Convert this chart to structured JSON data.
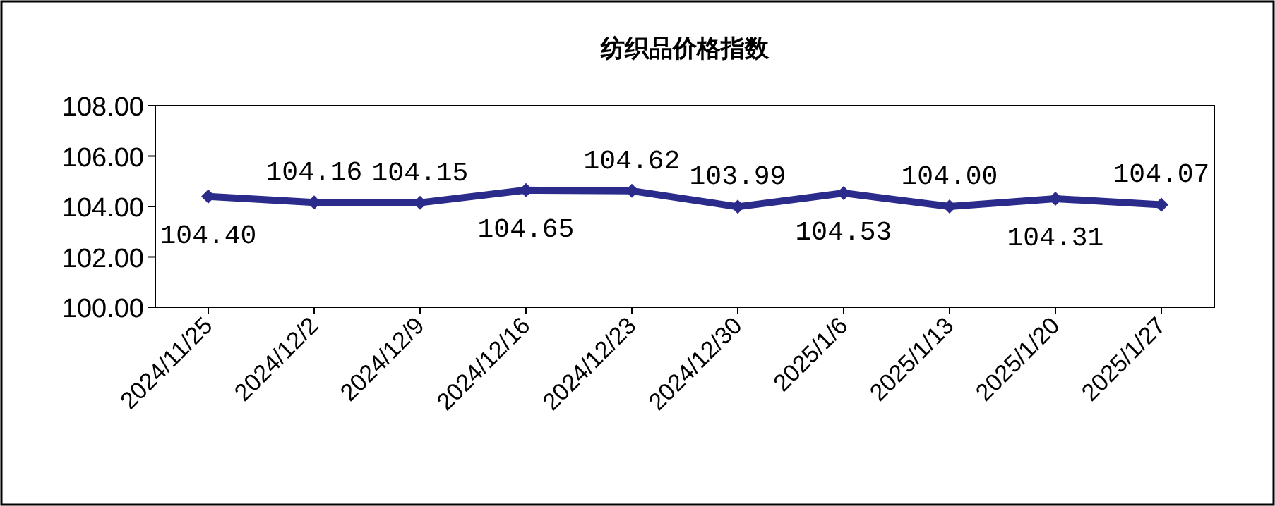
{
  "chart_data": {
    "type": "line",
    "title": "纺织品价格指数",
    "categories": [
      "2024/11/25",
      "2024/12/2",
      "2024/12/9",
      "2024/12/16",
      "2024/12/23",
      "2024/12/30",
      "2025/1/6",
      "2025/1/13",
      "2025/1/20",
      "2025/1/27"
    ],
    "series": [
      {
        "color": "#2b2b8c",
        "values": [
          104.4,
          104.16,
          104.15,
          104.65,
          104.62,
          103.99,
          104.53,
          104.0,
          104.31,
          104.07
        ],
        "value_labels": [
          "104.40",
          "104.16",
          "104.15",
          "104.65",
          "104.62",
          "103.99",
          "104.53",
          "104.00",
          "104.31",
          "104.07"
        ]
      }
    ],
    "ylim": [
      100,
      108
    ],
    "yticks": [
      {
        "value": 100,
        "label": "100.00"
      },
      {
        "value": 102,
        "label": "102.00"
      },
      {
        "value": 104,
        "label": "104.00"
      },
      {
        "value": 106,
        "label": "106.00"
      },
      {
        "value": 108,
        "label": "108.00"
      }
    ],
    "marker": "diamond",
    "line_style": "solid",
    "grid": false
  }
}
